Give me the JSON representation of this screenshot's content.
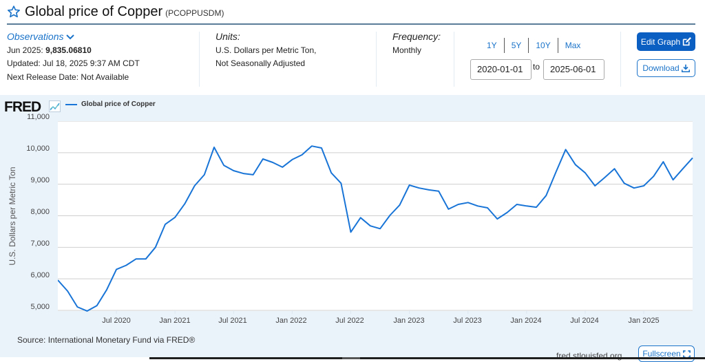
{
  "header": {
    "title": "Global price of Copper",
    "series_code": "(PCOPPUSDM)"
  },
  "observations": {
    "label": "Observations",
    "latest_period": "Jun 2025:",
    "latest_value": "9,835.06810",
    "updated": "Updated: Jul 18, 2025 9:37 AM CDT",
    "next_release": "Next Release Date: Not Available"
  },
  "units": {
    "label": "Units:",
    "line1": "U.S. Dollars per Metric Ton,",
    "line2": "Not Seasonally Adjusted"
  },
  "frequency": {
    "label": "Frequency:",
    "value": "Monthly"
  },
  "date_range": {
    "quick_links": [
      "1Y",
      "5Y",
      "10Y",
      "Max"
    ],
    "start": "2020-01-01",
    "to_label": "to",
    "end": "2025-06-01"
  },
  "buttons": {
    "edit_graph": "Edit Graph",
    "download": "Download",
    "fullscreen": "Fullscreen"
  },
  "chart_panel": {
    "logo": "FRED",
    "source": "Source: International Monetary Fund via FRED®",
    "site": "fred.stlouisfed.org",
    "line_color": "#1874d6"
  },
  "chart_data": {
    "type": "line",
    "title": "Global price of Copper",
    "xlabel": "",
    "ylabel": "U.S. Dollars per Metric Ton",
    "ylim": [
      5000,
      11000
    ],
    "y_ticks": [
      "11,000",
      "10,000",
      "9,000",
      "8,000",
      "7,000",
      "6,000",
      "5,000"
    ],
    "x_ticks": [
      "Jul 2020",
      "Jan 2021",
      "Jul 2021",
      "Jan 2022",
      "Jul 2022",
      "Jan 2023",
      "Jul 2023",
      "Jan 2024",
      "Jul 2024",
      "Jan 2025"
    ],
    "grid": true,
    "legend": [
      "Global price of Copper"
    ],
    "legend_position": "top-left",
    "x_start": "2020-01",
    "x_end": "2025-06",
    "series": [
      {
        "name": "Global price of Copper",
        "color": "#1874d6",
        "x": [
          "2020-01",
          "2020-02",
          "2020-03",
          "2020-04",
          "2020-05",
          "2020-06",
          "2020-07",
          "2020-08",
          "2020-09",
          "2020-10",
          "2020-11",
          "2020-12",
          "2021-01",
          "2021-02",
          "2021-03",
          "2021-04",
          "2021-05",
          "2021-06",
          "2021-07",
          "2021-08",
          "2021-09",
          "2021-10",
          "2021-11",
          "2021-12",
          "2022-01",
          "2022-02",
          "2022-03",
          "2022-04",
          "2022-05",
          "2022-06",
          "2022-07",
          "2022-08",
          "2022-09",
          "2022-10",
          "2022-11",
          "2022-12",
          "2023-01",
          "2023-02",
          "2023-03",
          "2023-04",
          "2023-05",
          "2023-06",
          "2023-07",
          "2023-08",
          "2023-09",
          "2023-10",
          "2023-11",
          "2023-12",
          "2024-01",
          "2024-02",
          "2024-03",
          "2024-04",
          "2024-05",
          "2024-06",
          "2024-07",
          "2024-08",
          "2024-09",
          "2024-10",
          "2024-11",
          "2024-12",
          "2025-01",
          "2025-02",
          "2025-03",
          "2025-04",
          "2025-05",
          "2025-06"
        ],
        "values": [
          5960,
          5610,
          5110,
          4980,
          5150,
          5650,
          6300,
          6430,
          6630,
          6630,
          7000,
          7730,
          7950,
          8380,
          8950,
          9300,
          10170,
          9600,
          9430,
          9340,
          9300,
          9800,
          9690,
          9540,
          9780,
          9930,
          10210,
          10150,
          9360,
          9030,
          7480,
          7940,
          7680,
          7590,
          8010,
          8340,
          8970,
          8880,
          8820,
          8780,
          8210,
          8360,
          8420,
          8310,
          8250,
          7900,
          8100,
          8360,
          8310,
          8270,
          8640,
          9380,
          10100,
          9620,
          9360,
          8950,
          9210,
          9490,
          9030,
          8880,
          8950,
          9250,
          9710,
          9140,
          9490,
          9835
        ]
      }
    ]
  }
}
